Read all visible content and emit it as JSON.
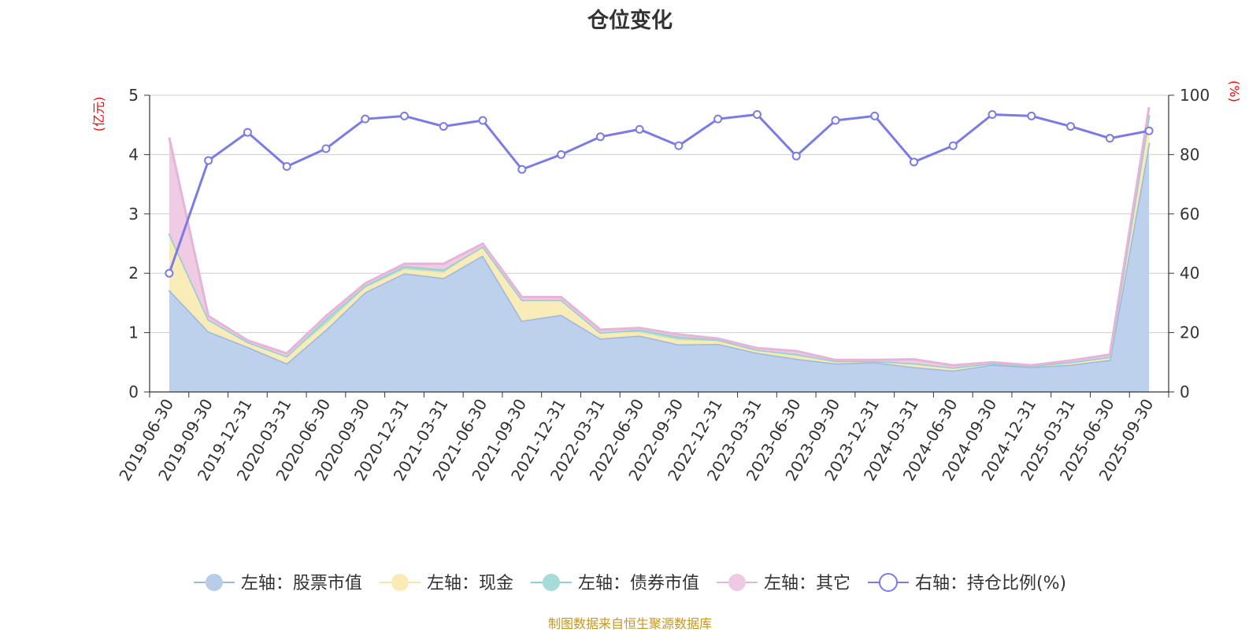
{
  "title": "仓位变化",
  "footer_note": "制图数据来自恒生聚源数据库",
  "chart_data": {
    "type": "area",
    "categories": [
      "2019-06-30",
      "2019-09-30",
      "2019-12-31",
      "2020-03-31",
      "2020-06-30",
      "2020-09-30",
      "2020-12-31",
      "2021-03-31",
      "2021-06-30",
      "2021-09-30",
      "2021-12-31",
      "2022-03-31",
      "2022-06-30",
      "2022-09-30",
      "2022-12-31",
      "2023-03-31",
      "2023-06-30",
      "2023-09-30",
      "2023-12-31",
      "2024-03-31",
      "2024-06-30",
      "2024-09-30",
      "2024-12-31",
      "2025-03-31",
      "2025-06-30",
      "2025-09-30"
    ],
    "left_axis": {
      "unit_label": "(亿元)",
      "ylim": [
        0,
        5
      ],
      "ticks": [
        0,
        1,
        2,
        3,
        4,
        5
      ]
    },
    "right_axis": {
      "unit_label": "(%)",
      "ylim": [
        0,
        100
      ],
      "ticks": [
        0,
        20,
        40,
        60,
        80,
        100
      ]
    },
    "stacked_series": [
      {
        "name": "左轴：股票市值",
        "color": "#9bb8e2",
        "fill": "#b9cdeb",
        "values": [
          1.72,
          1.02,
          0.76,
          0.48,
          1.05,
          1.68,
          2.0,
          1.92,
          2.3,
          1.2,
          1.3,
          0.9,
          0.95,
          0.8,
          0.81,
          0.66,
          0.56,
          0.48,
          0.5,
          0.42,
          0.36,
          0.46,
          0.42,
          0.46,
          0.54,
          4.2
        ]
      },
      {
        "name": "左轴：现金",
        "color": "#f8e6a8",
        "fill": "#faebb5",
        "values": [
          0.95,
          0.2,
          0.08,
          0.12,
          0.1,
          0.08,
          0.07,
          0.1,
          0.15,
          0.35,
          0.25,
          0.1,
          0.06,
          0.08,
          0.05,
          0.04,
          0.05,
          0.03,
          0.02,
          0.06,
          0.05,
          0.02,
          0.02,
          0.04,
          0.05,
          0.45
        ]
      },
      {
        "name": "左轴：债券市值",
        "color": "#8fd0d0",
        "fill": "#a6dcd8",
        "values": [
          0.0,
          0.0,
          0.0,
          0.0,
          0.08,
          0.03,
          0.05,
          0.04,
          0.0,
          0.0,
          0.0,
          0.0,
          0.04,
          0.05,
          0.02,
          0.01,
          0.03,
          0.01,
          0.0,
          0.0,
          0.0,
          0.0,
          0.0,
          0.0,
          0.0,
          0.02
        ]
      },
      {
        "name": "左轴：其它",
        "color": "#e6b4d8",
        "fill": "#efc8e3",
        "values": [
          1.62,
          0.06,
          0.03,
          0.05,
          0.05,
          0.04,
          0.04,
          0.1,
          0.05,
          0.05,
          0.05,
          0.05,
          0.03,
          0.04,
          0.02,
          0.03,
          0.05,
          0.02,
          0.02,
          0.07,
          0.04,
          0.02,
          0.01,
          0.03,
          0.04,
          0.13
        ]
      }
    ],
    "line_series": {
      "name": "右轴：持仓比例(%)",
      "color": "#7b7be8",
      "values": [
        40,
        78,
        87.5,
        76,
        82,
        92,
        93,
        89.5,
        91.5,
        75,
        80,
        86,
        88.5,
        83,
        92,
        93.5,
        79.5,
        91.5,
        93,
        77.5,
        83,
        93.5,
        93,
        89.5,
        85.5,
        88
      ]
    },
    "grid": true,
    "legend_position": "bottom"
  }
}
